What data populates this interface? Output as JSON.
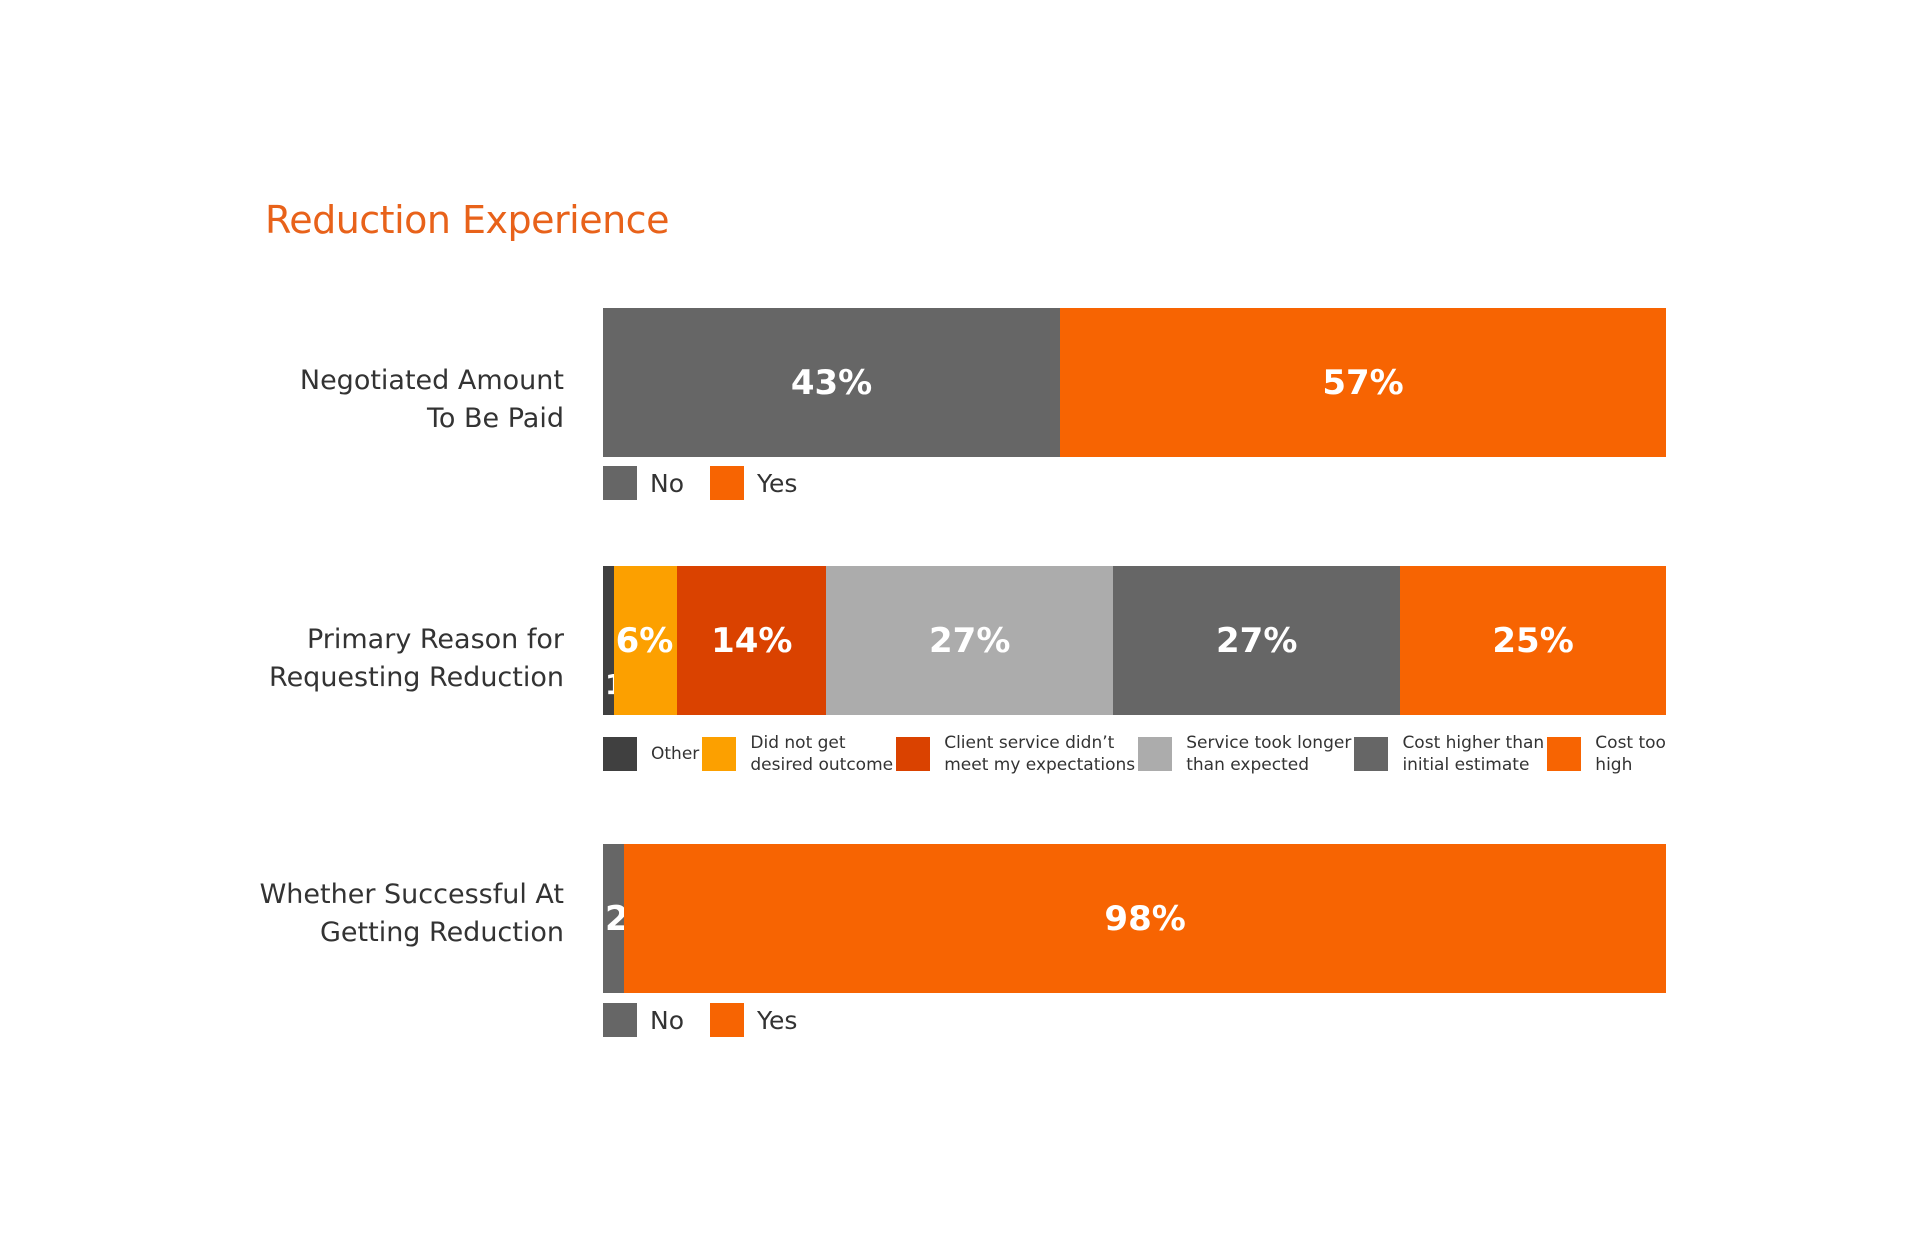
{
  "title": "Reduction Experience",
  "colors": {
    "no": "#666666",
    "yes": "#f76402",
    "other": "#404040",
    "did_not_get": "#fca000",
    "client_service": "#da4200",
    "service_longer": "#acacac",
    "cost_higher": "#666666",
    "cost_too_high": "#f76402"
  },
  "chart_data": [
    {
      "type": "bar",
      "orientation": "horizontal-stacked-100",
      "title": "Negotiated Amount To Be Paid",
      "row_label": "Negotiated Amount\nTo Be Paid",
      "series": [
        {
          "name": "No",
          "value": 43,
          "label": "43%",
          "color": "#666666"
        },
        {
          "name": "Yes",
          "value": 57,
          "label": "57%",
          "color": "#f76402"
        }
      ],
      "legend": [
        {
          "label": "No",
          "color": "#666666"
        },
        {
          "label": "Yes",
          "color": "#f76402"
        }
      ],
      "legend_placement": "bottom-left"
    },
    {
      "type": "bar",
      "orientation": "horizontal-stacked-100",
      "title": "Primary Reason for Requesting Reduction",
      "row_label": "Primary Reason for\nRequesting Reduction",
      "series": [
        {
          "name": "Other",
          "value": 1,
          "label": "1%",
          "color": "#404040"
        },
        {
          "name": "Did not get desired outcome",
          "value": 6,
          "label": "6%",
          "color": "#fca000"
        },
        {
          "name": "Client service didn't meet my expectations",
          "value": 14,
          "label": "14%",
          "color": "#da4200"
        },
        {
          "name": "Service took longer than expected",
          "value": 27,
          "label": "27%",
          "color": "#acacac"
        },
        {
          "name": "Cost higher than initial estimate",
          "value": 27,
          "label": "27%",
          "color": "#666666"
        },
        {
          "name": "Cost too high",
          "value": 25,
          "label": "25%",
          "color": "#f76402"
        }
      ],
      "legend": [
        {
          "label": "Other",
          "color": "#404040"
        },
        {
          "label": "Did not get\ndesired outcome",
          "color": "#fca000"
        },
        {
          "label": "Client service didn’t\nmeet my expectations",
          "color": "#da4200"
        },
        {
          "label": "Service took longer\nthan expected",
          "color": "#acacac"
        },
        {
          "label": "Cost higher than\ninitial estimate",
          "color": "#666666"
        },
        {
          "label": "Cost too\nhigh",
          "color": "#f76402"
        }
      ],
      "legend_placement": "bottom"
    },
    {
      "type": "bar",
      "orientation": "horizontal-stacked-100",
      "title": "Whether Successful At Getting Reduction",
      "row_label": "Whether Successful At\nGetting Reduction",
      "series": [
        {
          "name": "No",
          "value": 2,
          "label": "2%",
          "color": "#666666"
        },
        {
          "name": "Yes",
          "value": 98,
          "label": "98%",
          "color": "#f76402"
        }
      ],
      "legend": [
        {
          "label": "No",
          "color": "#666666"
        },
        {
          "label": "Yes",
          "color": "#f76402"
        }
      ],
      "legend_placement": "bottom-left"
    }
  ]
}
